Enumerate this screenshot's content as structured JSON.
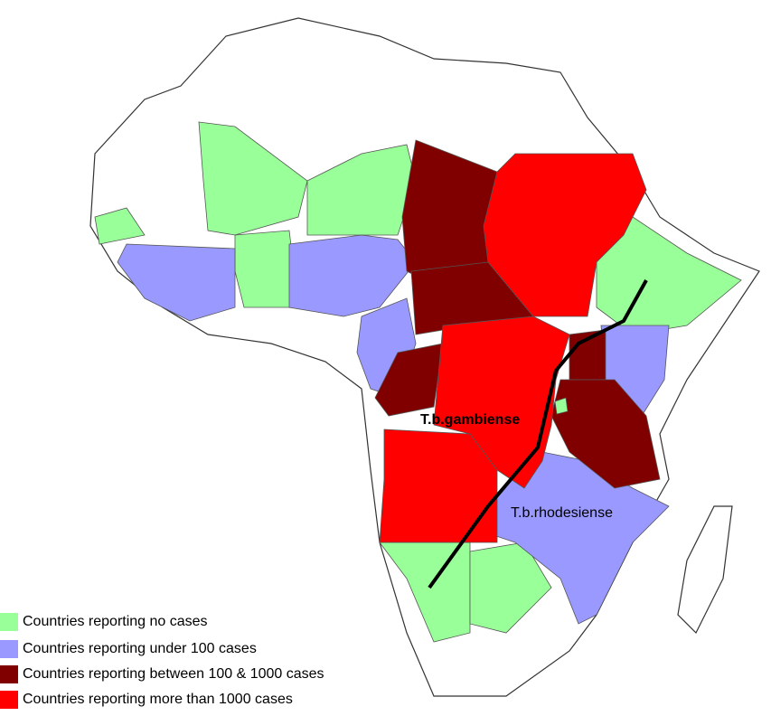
{
  "labels": {
    "gambiense": "T.b.gambiense",
    "rhodesiense": "T.b.rhodesiense"
  },
  "legend": [
    {
      "label": "Countries reporting no cases",
      "color": "#99ff99"
    },
    {
      "label": "Countries reporting under 100 cases",
      "color": "#9999ff"
    },
    {
      "label": "Countries reporting between 100 & 1000 cases",
      "color": "#800000"
    },
    {
      "label": "Countries reporting more than 1000 cases",
      "color": "#ff0000"
    }
  ]
}
